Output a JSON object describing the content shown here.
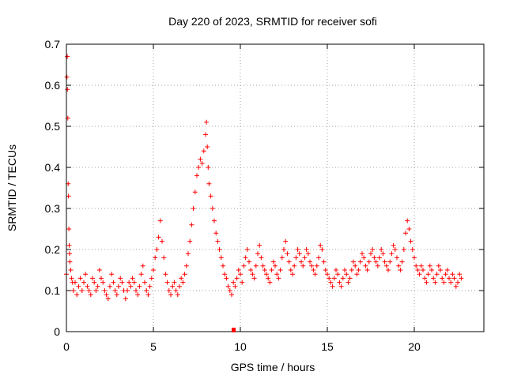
{
  "chart_data": {
    "type": "scatter",
    "title": "Day 220 of 2023, SRMTID for receiver sofi",
    "xlabel": "GPS time / hours",
    "ylabel": "SRMTID / TECUs",
    "xlim": [
      0,
      24
    ],
    "ylim": [
      0,
      0.7
    ],
    "xticks": [
      0,
      5,
      10,
      15,
      20
    ],
    "xtick_labels": [
      "0",
      "5",
      "10",
      "15",
      "20"
    ],
    "yticks": [
      0,
      0.1,
      0.2,
      0.3,
      0.4,
      0.5,
      0.6,
      0.7
    ],
    "ytick_labels": [
      "0",
      "0.1",
      "0.2",
      "0.3",
      "0.4",
      "0.5",
      "0.6",
      "0.7"
    ],
    "grid": true,
    "marker": "+",
    "color": "#ff0000",
    "series": [
      {
        "name": "SRMTID",
        "x": [
          0.0,
          0.03,
          0.05,
          0.06,
          0.08,
          0.1,
          0.12,
          0.14,
          0.16,
          0.18,
          0.2,
          0.25,
          0.3,
          0.35,
          0.4,
          0.5,
          0.6,
          0.7,
          0.8,
          0.9,
          1.0,
          1.1,
          1.2,
          1.3,
          1.4,
          1.5,
          1.6,
          1.7,
          1.8,
          1.9,
          2.0,
          2.1,
          2.2,
          2.3,
          2.4,
          2.5,
          2.6,
          2.7,
          2.8,
          2.9,
          3.0,
          3.1,
          3.2,
          3.3,
          3.4,
          3.5,
          3.6,
          3.7,
          3.8,
          3.9,
          4.0,
          4.1,
          4.2,
          4.3,
          4.4,
          4.5,
          4.6,
          4.7,
          4.8,
          4.9,
          5.0,
          5.1,
          5.2,
          5.3,
          5.4,
          5.5,
          5.6,
          5.7,
          5.8,
          5.9,
          6.0,
          6.1,
          6.2,
          6.3,
          6.4,
          6.5,
          6.6,
          6.7,
          6.8,
          6.9,
          7.0,
          7.1,
          7.2,
          7.3,
          7.4,
          7.5,
          7.6,
          7.7,
          7.8,
          7.9,
          8.0,
          8.05,
          8.1,
          8.15,
          8.2,
          8.3,
          8.4,
          8.5,
          8.6,
          8.7,
          8.8,
          8.9,
          9.0,
          9.1,
          9.2,
          9.3,
          9.4,
          9.5,
          9.6,
          9.7,
          9.8,
          9.9,
          10.0,
          10.1,
          10.2,
          10.3,
          10.4,
          10.5,
          10.6,
          10.7,
          10.8,
          10.9,
          11.0,
          11.1,
          11.2,
          11.3,
          11.4,
          11.5,
          11.6,
          11.7,
          11.8,
          11.9,
          12.0,
          12.1,
          12.2,
          12.3,
          12.4,
          12.5,
          12.6,
          12.7,
          12.8,
          12.9,
          13.0,
          13.1,
          13.2,
          13.3,
          13.4,
          13.5,
          13.6,
          13.7,
          13.8,
          13.9,
          14.0,
          14.1,
          14.2,
          14.3,
          14.4,
          14.5,
          14.6,
          14.7,
          14.8,
          14.9,
          15.0,
          15.1,
          15.2,
          15.3,
          15.4,
          15.5,
          15.6,
          15.7,
          15.8,
          15.9,
          16.0,
          16.1,
          16.2,
          16.3,
          16.4,
          16.5,
          16.6,
          16.7,
          16.8,
          16.9,
          17.0,
          17.1,
          17.2,
          17.3,
          17.4,
          17.5,
          17.6,
          17.7,
          17.8,
          17.9,
          18.0,
          18.1,
          18.2,
          18.3,
          18.4,
          18.5,
          18.6,
          18.7,
          18.8,
          18.9,
          19.0,
          19.1,
          19.2,
          19.3,
          19.4,
          19.5,
          19.6,
          19.7,
          19.8,
          19.9,
          20.0,
          20.1,
          20.2,
          20.3,
          20.4,
          20.5,
          20.6,
          20.7,
          20.8,
          20.9,
          21.0,
          21.1,
          21.2,
          21.3,
          21.4,
          21.5,
          21.6,
          21.7,
          21.8,
          21.9,
          22.0,
          22.1,
          22.2,
          22.3,
          22.4,
          22.5,
          22.6,
          22.7
        ],
        "y": [
          0.14,
          0.62,
          0.67,
          0.59,
          0.52,
          0.36,
          0.33,
          0.25,
          0.21,
          0.19,
          0.17,
          0.15,
          0.13,
          0.12,
          0.1,
          0.12,
          0.09,
          0.11,
          0.13,
          0.1,
          0.12,
          0.14,
          0.11,
          0.1,
          0.09,
          0.13,
          0.12,
          0.1,
          0.11,
          0.15,
          0.13,
          0.12,
          0.1,
          0.09,
          0.08,
          0.11,
          0.14,
          0.12,
          0.1,
          0.09,
          0.11,
          0.13,
          0.12,
          0.1,
          0.08,
          0.1,
          0.12,
          0.11,
          0.13,
          0.12,
          0.1,
          0.09,
          0.11,
          0.14,
          0.16,
          0.12,
          0.1,
          0.09,
          0.11,
          0.13,
          0.15,
          0.18,
          0.2,
          0.23,
          0.27,
          0.22,
          0.18,
          0.14,
          0.12,
          0.1,
          0.09,
          0.11,
          0.12,
          0.1,
          0.09,
          0.11,
          0.13,
          0.12,
          0.14,
          0.16,
          0.19,
          0.22,
          0.26,
          0.3,
          0.34,
          0.38,
          0.4,
          0.42,
          0.41,
          0.44,
          0.48,
          0.51,
          0.45,
          0.4,
          0.36,
          0.33,
          0.3,
          0.27,
          0.24,
          0.22,
          0.2,
          0.18,
          0.16,
          0.14,
          0.13,
          0.11,
          0.1,
          0.09,
          0.12,
          0.11,
          0.13,
          0.15,
          0.14,
          0.12,
          0.16,
          0.18,
          0.2,
          0.17,
          0.15,
          0.14,
          0.13,
          0.16,
          0.19,
          0.21,
          0.18,
          0.16,
          0.15,
          0.14,
          0.13,
          0.12,
          0.15,
          0.17,
          0.16,
          0.14,
          0.13,
          0.15,
          0.18,
          0.2,
          0.22,
          0.19,
          0.17,
          0.15,
          0.14,
          0.16,
          0.18,
          0.2,
          0.19,
          0.17,
          0.16,
          0.18,
          0.2,
          0.19,
          0.17,
          0.16,
          0.15,
          0.14,
          0.16,
          0.18,
          0.21,
          0.2,
          0.17,
          0.15,
          0.14,
          0.13,
          0.12,
          0.11,
          0.13,
          0.15,
          0.14,
          0.12,
          0.11,
          0.13,
          0.15,
          0.14,
          0.12,
          0.13,
          0.15,
          0.17,
          0.16,
          0.14,
          0.15,
          0.17,
          0.19,
          0.18,
          0.16,
          0.15,
          0.17,
          0.19,
          0.2,
          0.18,
          0.17,
          0.16,
          0.18,
          0.2,
          0.19,
          0.17,
          0.16,
          0.15,
          0.17,
          0.19,
          0.21,
          0.2,
          0.18,
          0.16,
          0.15,
          0.17,
          0.2,
          0.24,
          0.27,
          0.25,
          0.22,
          0.2,
          0.18,
          0.16,
          0.15,
          0.14,
          0.16,
          0.15,
          0.13,
          0.12,
          0.14,
          0.16,
          0.15,
          0.13,
          0.12,
          0.14,
          0.16,
          0.15,
          0.13,
          0.12,
          0.14,
          0.15,
          0.13,
          0.12,
          0.14,
          0.13,
          0.11,
          0.12,
          0.14,
          0.13
        ]
      }
    ]
  }
}
